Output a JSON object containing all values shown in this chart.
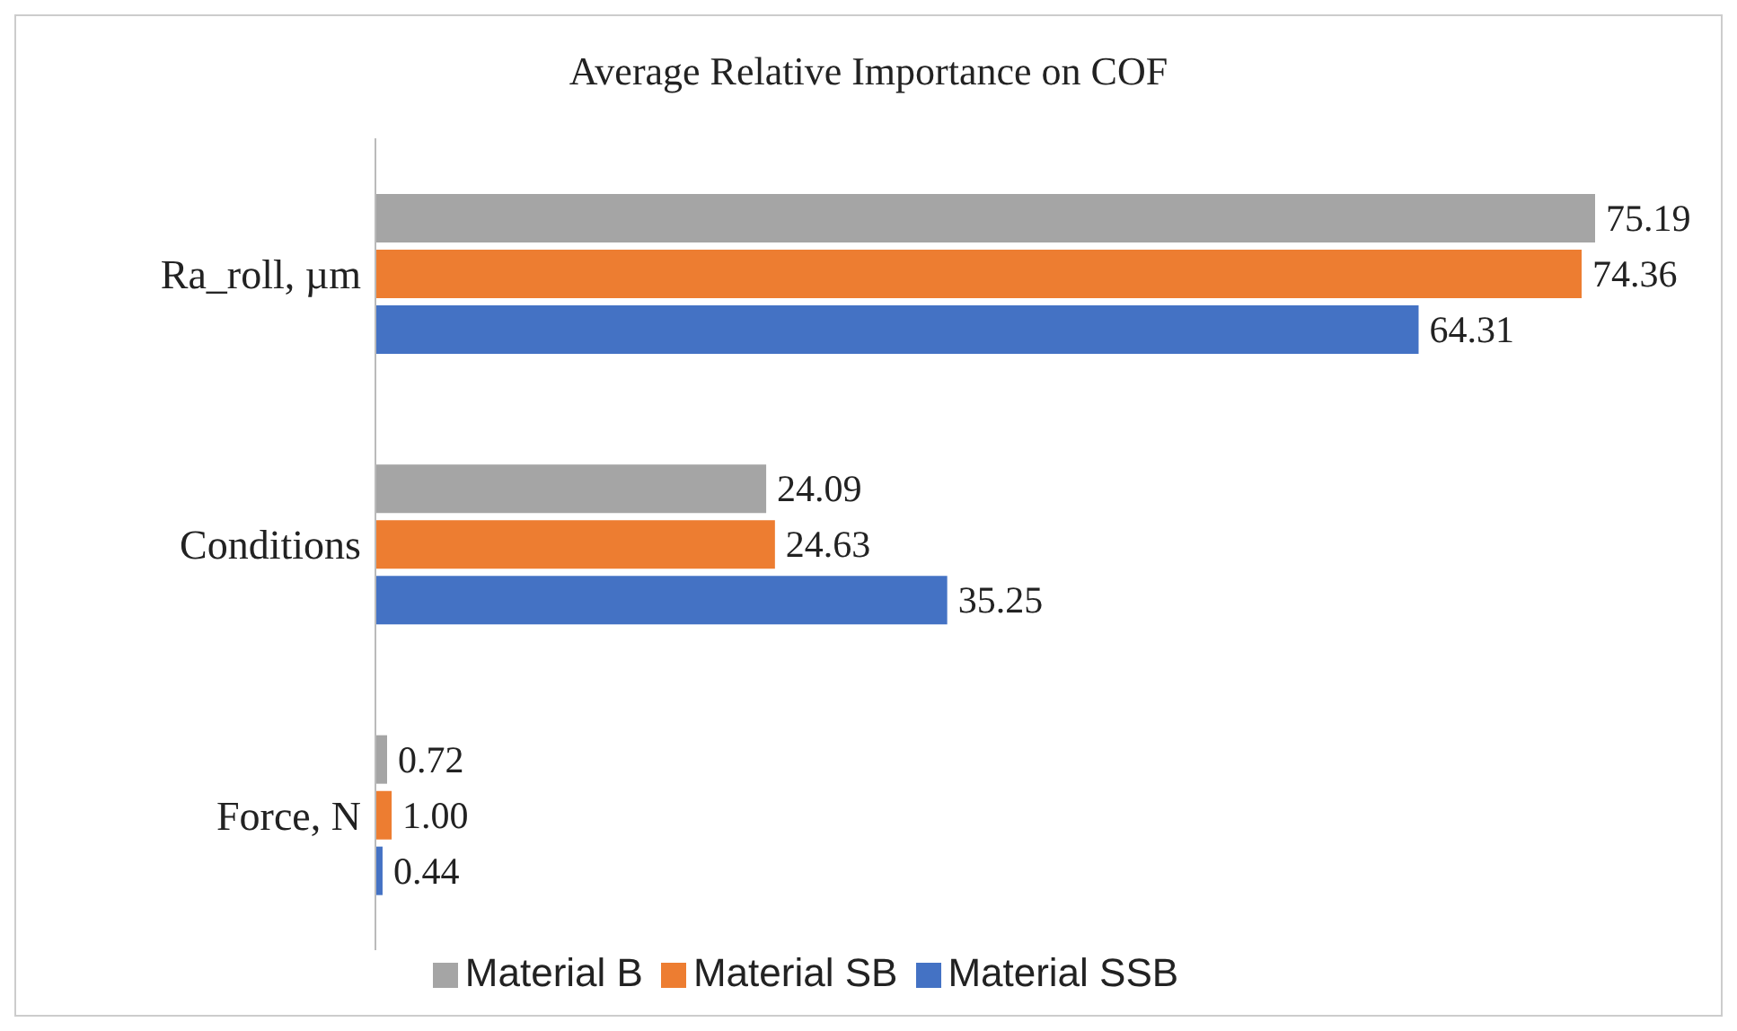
{
  "chart_data": {
    "type": "bar",
    "orientation": "horizontal",
    "title": "Average Relative Importance on COF",
    "categories": [
      "Ra_roll, µm",
      "Conditions",
      "Force, N"
    ],
    "series": [
      {
        "name": "Material B",
        "color": "#a5a5a5",
        "values": [
          75.19,
          24.09,
          0.72
        ],
        "value_labels": [
          "75.19",
          "24.09",
          "0.72"
        ]
      },
      {
        "name": "Material SB",
        "color": "#ed7d31",
        "values": [
          74.36,
          24.63,
          1.0
        ],
        "value_labels": [
          "74.36",
          "24.63",
          "1.00"
        ]
      },
      {
        "name": "Material SSB",
        "color": "#4472c4",
        "values": [
          64.31,
          35.25,
          0.44
        ],
        "value_labels": [
          "64.31",
          "35.25",
          "0.44"
        ]
      }
    ],
    "tick_labels": "y",
    "legend": "bottom"
  }
}
